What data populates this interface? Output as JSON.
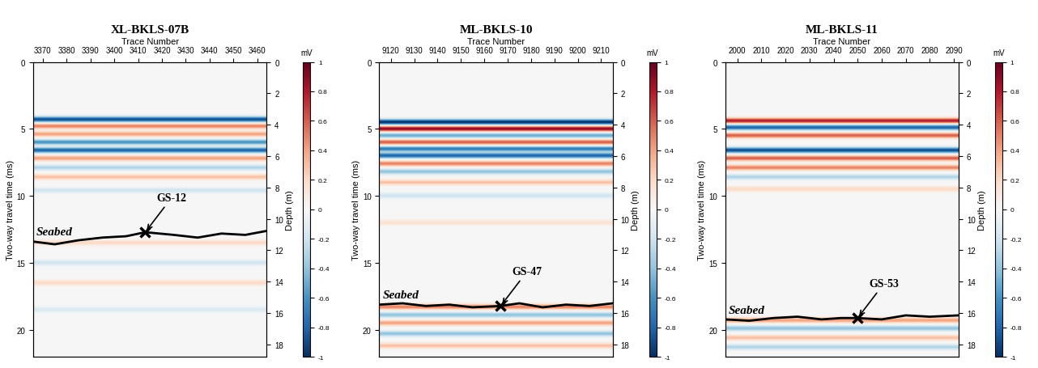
{
  "chart_data": [
    {
      "type": "heatmap",
      "title": "XL-BKLS-07B",
      "x_label": "Trace Number",
      "y_label": "Two-way travel time (ms)",
      "y2_label": "Depth (m)",
      "xlim": [
        3366,
        3464
      ],
      "xticks": [
        3370,
        3380,
        3390,
        3400,
        3410,
        3420,
        3430,
        3440,
        3450,
        3460
      ],
      "ylim": [
        0,
        22
      ],
      "yticks": [
        0,
        5,
        10,
        15,
        20
      ],
      "y2lim": [
        0,
        18.8
      ],
      "y2ticks": [
        0,
        2,
        4,
        6,
        8,
        10,
        12,
        14,
        16,
        18
      ],
      "colorbar": {
        "label": "mV",
        "range": [
          -1,
          1
        ],
        "ticks": [
          -1,
          -0.8,
          -0.6,
          -0.4,
          -0.2,
          0,
          0.2,
          0.4,
          0.6,
          0.8,
          1
        ]
      },
      "reflectors": {
        "twt": [
          4.3,
          4.8,
          5.4,
          6.0,
          6.6,
          7.2,
          7.9,
          8.6,
          9.6,
          13.5,
          15.0,
          16.5,
          18.5
        ],
        "amplitude": [
          -0.9,
          0.5,
          0.4,
          -0.6,
          -0.8,
          0.4,
          -0.3,
          0.3,
          -0.2,
          0.2,
          -0.2,
          0.2,
          -0.15
        ]
      },
      "seabed": {
        "name": "Seabed",
        "color": "#000000",
        "trace": [
          3366,
          3375,
          3385,
          3395,
          3405,
          3413,
          3425,
          3435,
          3445,
          3455,
          3464
        ],
        "twt": [
          13.4,
          13.6,
          13.3,
          13.1,
          13.0,
          12.7,
          12.9,
          13.1,
          12.8,
          12.9,
          12.6
        ]
      },
      "samples": [
        {
          "name": "GS-12",
          "trace": 3413,
          "twt": 12.7
        }
      ],
      "marker": "x"
    },
    {
      "type": "heatmap",
      "title": "ML-BKLS-10",
      "x_label": "Trace Number",
      "y_label": "Two-way travel time (ms)",
      "y2_label": "Depth (m)",
      "xlim": [
        9115,
        9215
      ],
      "xticks": [
        9120,
        9130,
        9140,
        9150,
        9160,
        9170,
        9180,
        9190,
        9200,
        9210
      ],
      "ylim": [
        0,
        22
      ],
      "yticks": [
        0,
        5,
        10,
        15,
        20
      ],
      "y2lim": [
        0,
        18.8
      ],
      "y2ticks": [
        0,
        2,
        4,
        6,
        8,
        10,
        12,
        14,
        16,
        18
      ],
      "colorbar": {
        "label": "mV",
        "range": [
          -1,
          1
        ],
        "ticks": [
          -1,
          -0.8,
          -0.6,
          -0.4,
          -0.2,
          0,
          0.2,
          0.4,
          0.6,
          0.8,
          1
        ]
      },
      "reflectors": {
        "twt": [
          4.5,
          5.0,
          5.5,
          6.0,
          6.5,
          7.0,
          7.6,
          8.2,
          9.0,
          10.0,
          12.0,
          18.3,
          18.9,
          19.5,
          20.3,
          21.2
        ],
        "amplitude": [
          -1.0,
          0.9,
          -0.5,
          0.6,
          -0.7,
          -0.8,
          0.5,
          -0.4,
          0.3,
          -0.2,
          0.15,
          0.5,
          -0.4,
          0.4,
          -0.4,
          0.3
        ]
      },
      "seabed": {
        "name": "Seabed",
        "color": "#000000",
        "trace": [
          9115,
          9125,
          9135,
          9145,
          9155,
          9167,
          9175,
          9185,
          9195,
          9205,
          9215
        ],
        "twt": [
          18.1,
          18.0,
          18.2,
          18.1,
          18.3,
          18.2,
          18.0,
          18.3,
          18.1,
          18.2,
          18.0
        ]
      },
      "samples": [
        {
          "name": "GS-47",
          "trace": 9167,
          "twt": 18.2
        }
      ],
      "marker": "x"
    },
    {
      "type": "heatmap",
      "title": "ML-BKLS-11",
      "x_label": "Trace Number",
      "y_label": "Two-way travel time (ms)",
      "y2_label": "Depth (m)",
      "xlim": [
        1995,
        2092
      ],
      "xticks": [
        2000,
        2010,
        2020,
        2030,
        2040,
        2050,
        2060,
        2070,
        2080,
        2090
      ],
      "ylim": [
        0,
        22
      ],
      "yticks": [
        0,
        5,
        10,
        15,
        20
      ],
      "y2lim": [
        0,
        18.8
      ],
      "y2ticks": [
        0,
        2,
        4,
        6,
        8,
        10,
        12,
        14,
        16,
        18
      ],
      "colorbar": {
        "label": "mV",
        "range": [
          -1,
          1
        ],
        "ticks": [
          -1,
          -0.8,
          -0.6,
          -0.4,
          -0.2,
          0,
          0.2,
          0.4,
          0.6,
          0.8,
          1
        ]
      },
      "reflectors": {
        "twt": [
          4.4,
          4.9,
          5.5,
          6.6,
          7.2,
          7.9,
          8.6,
          9.5,
          19.3,
          19.9,
          20.6,
          21.3
        ],
        "amplitude": [
          0.8,
          -0.8,
          0.6,
          -0.9,
          0.6,
          0.5,
          -0.3,
          0.2,
          0.4,
          -0.4,
          0.3,
          -0.3
        ]
      },
      "seabed": {
        "name": "Seabed",
        "color": "#000000",
        "trace": [
          1995,
          2005,
          2015,
          2025,
          2035,
          2043,
          2050,
          2060,
          2070,
          2080,
          2092
        ],
        "twt": [
          19.2,
          19.3,
          19.1,
          19.0,
          19.2,
          19.1,
          19.1,
          19.2,
          18.9,
          19.0,
          18.9
        ]
      },
      "samples": [
        {
          "name": "GS-53",
          "trace": 2050,
          "twt": 19.1
        }
      ],
      "marker": "x"
    }
  ]
}
